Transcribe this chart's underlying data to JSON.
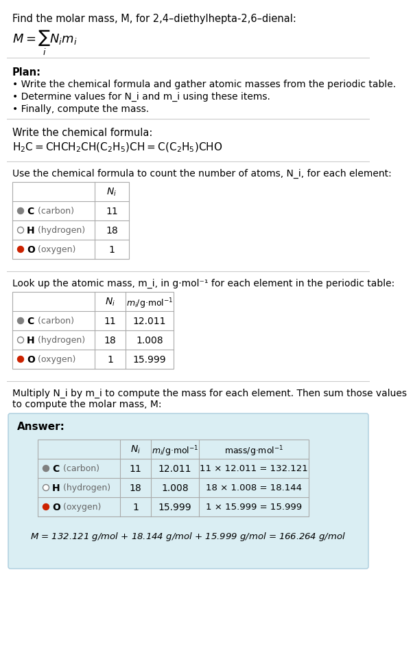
{
  "title_text": "Find the molar mass, M, for 2,4–diethylhepta-2,6–dienal:",
  "formula_equation": "M = ∑ N_i m_i",
  "plan_header": "Plan:",
  "plan_bullets": [
    "• Write the chemical formula and gather atomic masses from the periodic table.",
    "• Determine values for N_i and m_i using these items.",
    "• Finally, compute the mass."
  ],
  "formula_header": "Write the chemical formula:",
  "chemical_formula": "H₂C=CHCH₂CH(C₂H₅)CH=C(C₂H₅)CHO",
  "count_header": "Use the chemical formula to count the number of atoms, N_i, for each element:",
  "elements": [
    "C (carbon)",
    "H (hydrogen)",
    "O (oxygen)"
  ],
  "element_symbols": [
    "C",
    "H",
    "O"
  ],
  "element_names": [
    "carbon",
    "hydrogen",
    "oxygen"
  ],
  "dot_colors": [
    "#808080",
    "#ffffff",
    "#cc2200"
  ],
  "dot_outline": [
    "#808080",
    "#808080",
    "#cc2200"
  ],
  "Ni": [
    11,
    18,
    1
  ],
  "mi": [
    12.011,
    1.008,
    15.999
  ],
  "mass_calc": [
    "11 × 12.011 = 132.121",
    "18 × 1.008 = 18.144",
    "1 × 15.999 = 15.999"
  ],
  "lookup_header": "Look up the atomic mass, m_i, in g·mol⁻¹ for each element in the periodic table:",
  "multiply_header": "Multiply N_i by m_i to compute the mass for each element. Then sum those values\nto compute the molar mass, M:",
  "answer_label": "Answer:",
  "final_answer": "M = 132.121 g/mol + 18.144 g/mol + 15.999 g/mol = 166.264 g/mol",
  "bg_color": "#ffffff",
  "answer_box_color": "#daeef3",
  "table_line_color": "#aaaaaa",
  "text_color": "#000000",
  "gray_text": "#666666"
}
